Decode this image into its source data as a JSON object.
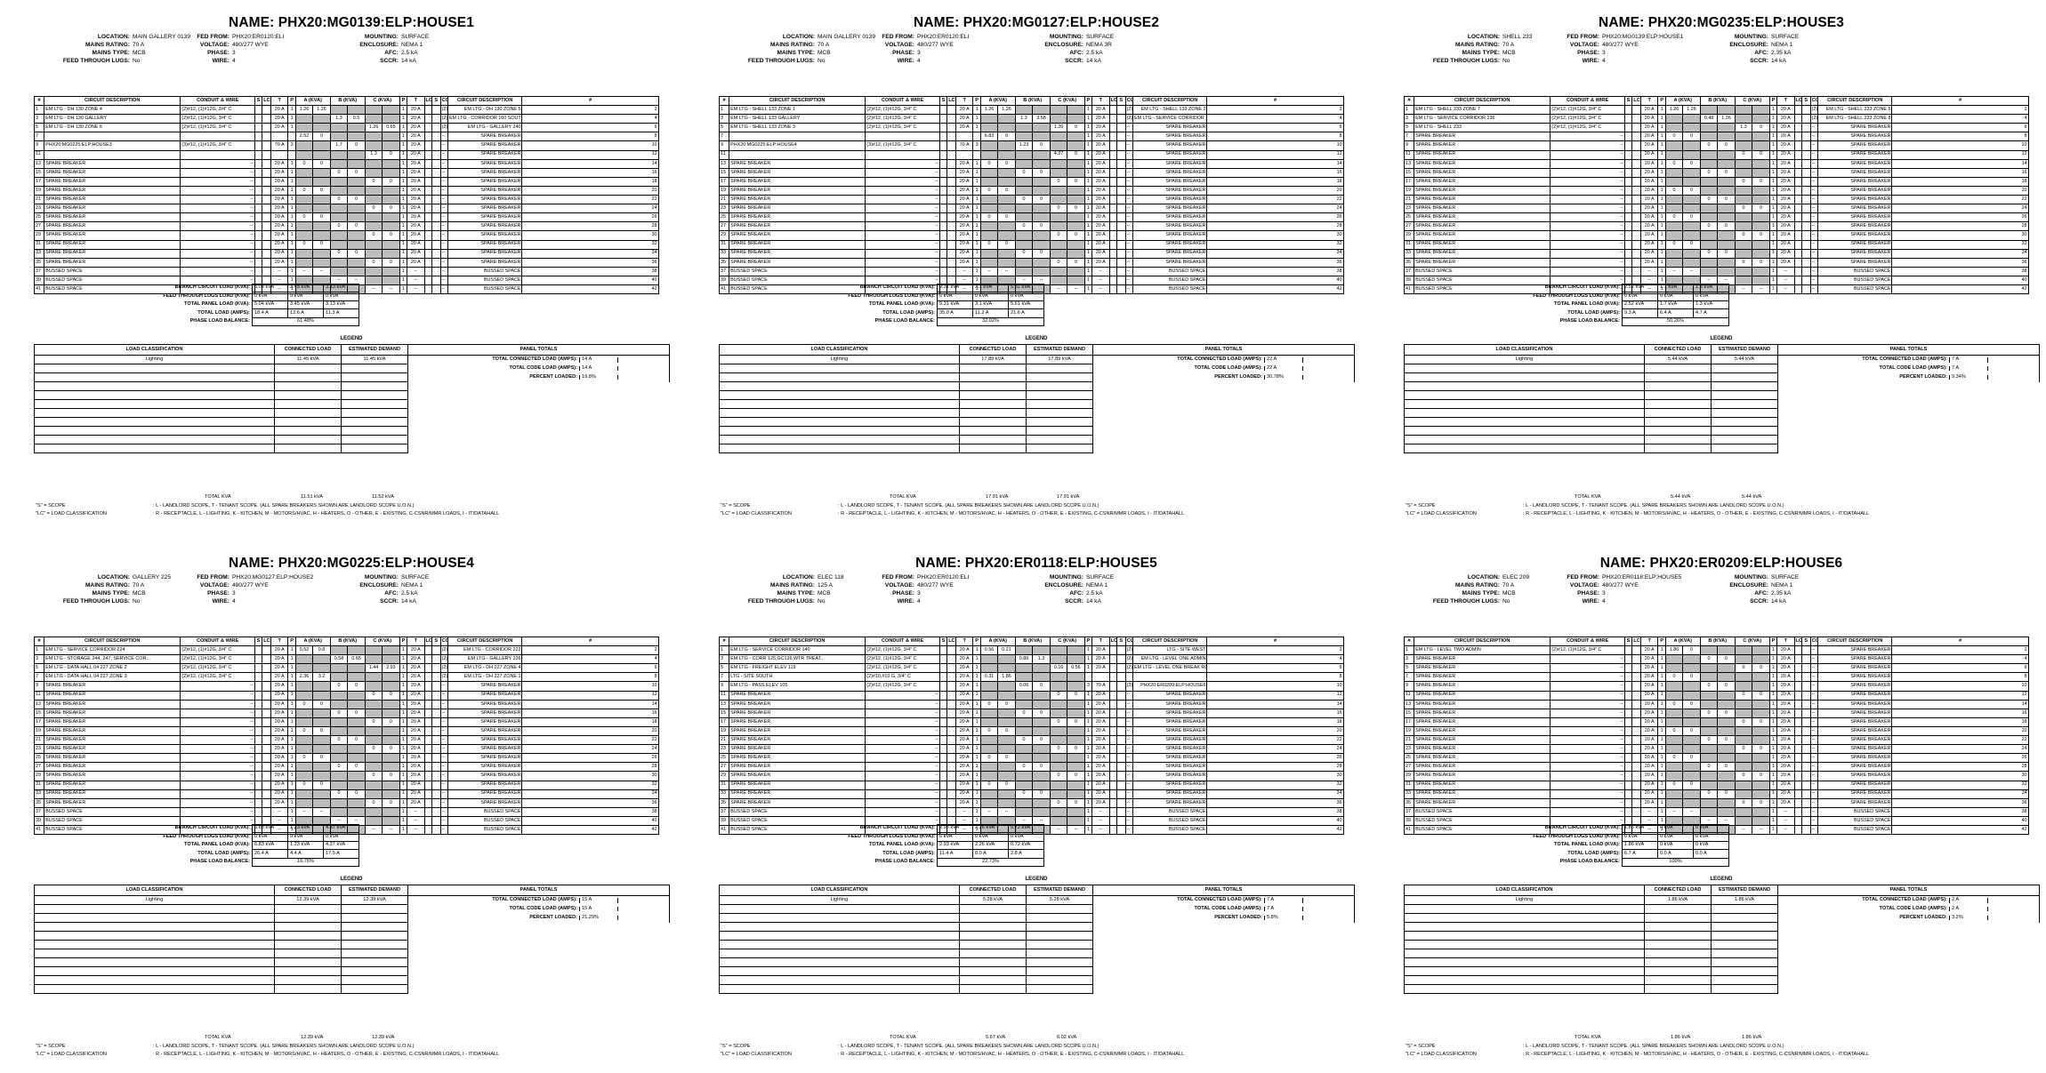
{
  "common": {
    "labels": {
      "location": "LOCATION:",
      "mains_rating": "MAINS RATING:",
      "mains_type": "MAINS TYPE:",
      "feed_through": "FEED THROUGH LUGS:",
      "fed_from": "FED FROM:",
      "voltage": "VOLTAGE:",
      "phase": "PHASE:",
      "wire": "WIRE:",
      "mounting": "MOUNTING:",
      "enclosure": "ENCLOSURE:",
      "afc": "AFC:",
      "sccr": "SCCR:"
    },
    "cols": {
      "num": "#",
      "desc": "CIRCUIT DESCRIPTION",
      "conduit": "CONDUIT & WIRE",
      "s": "S",
      "lc": "LC",
      "t": "T",
      "p": "P",
      "a": "A (KVA)",
      "b": "B (KVA)",
      "c": "C (KVA)"
    },
    "summary_labels": {
      "branch": "BRANCH CIRCUIT LOAD (KVA):",
      "feed": "FEED THROUGH LUGS LOAD (KVA):",
      "total": "TOTAL PANEL LOAD (KVA):",
      "amps": "TOTAL LOAD (AMPS):",
      "balance": "PHASE LOAD BALANCE:"
    },
    "legend": {
      "title": "LEGEND",
      "load_class": "LOAD CLASSIFICATION",
      "connected": "CONNECTED LOAD",
      "estimated": "ESTIMATED DEMAND",
      "panel_totals": "PANEL TOTALS",
      "tc_amps": "TOTAL CONNECTED LOAD (AMPS):",
      "tcode_amps": "TOTAL CODE LOAD (AMPS):",
      "pct": "PERCENT LOADED:",
      "total_kva": "TOTAL KVA"
    },
    "footer": {
      "s_key": "\"S\" = SCOPE",
      "s_val": ": L - LANDLORD SCOPE, T - TENANT SCOPE. (ALL SPARE BREAKERS SHOWN ARE LANDLORD SCOPE U.O.N.)",
      "lc_key": "\"LC\" = LOAD CLASSIFICATION",
      "lc_val": ": R - RECEPTACLE, L - LIGHTING, K - KITCHEN, M - MOTORS/HVAC, H - HEATERS, O - OTHER, E - EXISTING, C-CSNR/MMR LOADS, I - IT/DATAHALL"
    },
    "spare": "SPARE BREAKER",
    "bussed": "BUSSED SPACE",
    "dash": "--",
    "conduit_std": "(2)#12, (1)#12G, 3/4\" C",
    "amp20": "20 A",
    "one": "1",
    "zero": "0"
  },
  "panels": [
    {
      "name": "NAME: PHX20:MG0139:ELP:HOUSE1",
      "location": "MAIN GALLERY 0139",
      "mains_rating": "70 A",
      "mains_type": "MCB",
      "feed_through": "No",
      "fed_from": "PHX20:ER0120:ELI",
      "voltage": "480/277 WYE",
      "phase": "3",
      "wire": "4",
      "mounting": "SURFACE",
      "enclosure": "NEMA 1",
      "afc": "2.5 kA",
      "sccr": "14 kA",
      "left": [
        {
          "n": "1",
          "d": "EM LTG - DH 130 ZONE 4",
          "cw": "(2)#12, (1)#12G, 3/4\" C",
          "s": "",
          "lc": "",
          "t": "20 A",
          "p": "1",
          "a": "1.26",
          "a2": "1.26"
        },
        {
          "n": "3",
          "d": "EM LTG - DH 130 GALLERY",
          "cw": "(2)#12, (1)#12G, 3/4\" C",
          "t": "20 A",
          "p": "1",
          "b": "1.3",
          "b2": "0.5"
        },
        {
          "n": "5",
          "d": "EM LTG - DH 130 ZONE 6",
          "cw": "(2)#12, (1)#12G, 3/4\" C",
          "t": "20 A",
          "p": "1",
          "c": "1.26",
          "c2": "0.65"
        },
        {
          "n": "7",
          "d": "",
          "cw": "",
          "t": "",
          "p": "",
          "a": "2.52",
          "a2": "0"
        },
        {
          "n": "9",
          "d": "PHX20:MG0225:ELP:HOUSE3",
          "cw": "(3)#12, (1)#12G, 3/4\" C",
          "t": "70 A",
          "p": "3",
          "b": "1.7",
          "b2": "0"
        },
        {
          "n": "11",
          "d": "",
          "cw": "",
          "t": "",
          "p": "",
          "c": "1.3",
          "c2": "0"
        }
      ],
      "right": [
        {
          "n": "2",
          "d": "EM LTG - DH 130 ZONE 5",
          "cw": "(2)#12, (1)#12G, 3/4\" C",
          "t": "20 A",
          "p": "1"
        },
        {
          "n": "4",
          "d": "EM LTG - CORRIDOR 160 SOUTH",
          "cw": "(2)#12, (1)#12G, 3/4\" C",
          "t": "20 A",
          "p": "1"
        },
        {
          "n": "6",
          "d": "EM LTG - GALLERY 240",
          "cw": "(2)#12, (1)#12G, 3/4\" C",
          "t": "20 A",
          "p": "1"
        }
      ],
      "sum": {
        "branch": [
          "5.04 kVA",
          "3.45 kVA",
          "3.13 kVA"
        ],
        "feed": [
          "0 kVA",
          "0 kVA",
          "0 kVA"
        ],
        "total": [
          "5.04 kVA",
          "3.45 kVA",
          "3.13 kVA"
        ],
        "amps": [
          "18.4 A",
          "12.6 A",
          "11.3 A"
        ],
        "balance": "61.48%"
      },
      "leg": {
        "cls": "Lighting",
        "conn": "11.45 kVA",
        "est": "11.45 kVA",
        "tca": "14 A",
        "tcode": "14 A",
        "pct": "19.8%",
        "tkva": "11.51 kVA",
        "tdem": "11.52 kVA"
      }
    },
    {
      "name": "NAME: PHX20:MG0127:ELP:HOUSE2",
      "location": "MAIN GALLERY 0139",
      "mains_rating": "70 A",
      "mains_type": "MCB",
      "feed_through": "No",
      "fed_from": "PHX20:ER0120:ELI",
      "voltage": "480/277 WYE",
      "phase": "3",
      "wire": "4",
      "mounting": "SURFACE",
      "enclosure": "NEMA 3R",
      "afc": "2.5 kA",
      "sccr": "14 kA",
      "left": [
        {
          "n": "1",
          "d": "EM LTG - SHELL 133 ZONE 1",
          "cw": "(2)#12, (1)#12G, 3/4\" C",
          "t": "20 A",
          "p": "1",
          "a": "1.26",
          "a2": "1.26"
        },
        {
          "n": "3",
          "d": "EM LTG - SHELL 133 GALLERY",
          "cw": "(2)#12, (1)#12G, 3/4\" C",
          "t": "20 A",
          "p": "1",
          "b": "1.3",
          "b2": "3.58"
        },
        {
          "n": "5",
          "d": "EM LTG - SHELL 133 ZONE 3",
          "cw": "(2)#12, (1)#12G, 3/4\" C",
          "t": "20 A",
          "p": "1",
          "c": "1.26",
          "c2": "0"
        },
        {
          "n": "7",
          "d": "",
          "cw": "",
          "t": "",
          "p": "",
          "a": "6.83",
          "a2": "0"
        },
        {
          "n": "9",
          "d": "PHX20:MG0225:ELP:HOUSE4",
          "cw": "(3)#12, (1)#12G, 3/4\" C",
          "t": "70 A",
          "p": "3",
          "b": "1.23",
          "b2": "0"
        },
        {
          "n": "11",
          "d": "",
          "cw": "",
          "t": "",
          "p": "",
          "c": "4.37",
          "c2": "0"
        }
      ],
      "right": [
        {
          "n": "2",
          "d": "EM LTG - SHELL 133 ZONE 2",
          "cw": "(2)#12, (1)#12G, 3/4\" C",
          "t": "20 A",
          "p": "1"
        },
        {
          "n": "4",
          "d": "EM LTG - SERVICE CORRIDOR 126",
          "cw": "(2)#12, (1)#12G, 3/4\" C",
          "t": "20 A",
          "p": "1"
        }
      ],
      "sum": {
        "branch": [
          "9.31 kVA",
          "3.1 kVA",
          "5.61 kVA"
        ],
        "feed": [
          "0 kVA",
          "0 kVA",
          "0 kVA"
        ],
        "total": [
          "9.31 kVA",
          "3.1 kVA",
          "5.61 kVA"
        ],
        "amps": [
          "35.0 A",
          "11.2 A",
          "21.6 A"
        ],
        "balance": "32.02%"
      },
      "leg": {
        "cls": "Lighting",
        "conn": "17.89 kVA",
        "est": "17.89 kVA",
        "tca": "22 A",
        "tcode": "22 A",
        "pct": "30.78%",
        "tkva": "17.91 kVA",
        "tdem": "17.91 kVA"
      }
    },
    {
      "name": "NAME: PHX20:MG0235:ELP:HOUSE3",
      "location": "SHELL 233",
      "mains_rating": "70 A",
      "mains_type": "MCB",
      "feed_through": "No",
      "fed_from": "PHX20:MG0139:ELP:HOUSE1",
      "voltage": "480/277 WYE",
      "phase": "3",
      "wire": "4",
      "mounting": "SURFACE",
      "enclosure": "NEMA 1",
      "afc": "2.35 kA",
      "sccr": "14 kA",
      "left": [
        {
          "n": "1",
          "d": "EM LTG - SHELL 233 ZONE 7",
          "cw": "(2)#12, (1)#12G, 3/4\" C",
          "t": "20 A",
          "p": "1",
          "a": "1.26",
          "a2": "1.26"
        },
        {
          "n": "3",
          "d": "EM LTG - SERVICE CORRIDOR 236",
          "cw": "(2)#12, (1)#12G, 3/4\" C",
          "t": "20 A",
          "p": "1",
          "b": "0.48",
          "b2": "1.26"
        },
        {
          "n": "5",
          "d": "EM LTG - SHELL 233",
          "cw": "(2)#12, (1)#12G, 3/4\" C",
          "t": "20 A",
          "p": "1",
          "c": "1.3",
          "c2": "0"
        }
      ],
      "right": [
        {
          "n": "2",
          "d": "EM LTG - SHELL 233 ZONE 5",
          "cw": "(2)#12, (1)#12G, 3/4\" C",
          "t": "20 A",
          "p": "1"
        },
        {
          "n": "4",
          "d": "EM LTG - SHELL 233 ZONE 8",
          "cw": "(2)#12, (1)#12G, 3/4\" C",
          "t": "20 A",
          "p": "1"
        }
      ],
      "sum": {
        "branch": [
          "2.52 kVA",
          "1.7 kVA",
          "1.3 kVA"
        ],
        "feed": [
          "0 kVA",
          "0 kVA",
          "0 kVA"
        ],
        "total": [
          "2.52 kVA",
          "1.7 kVA",
          "1.3 kVA"
        ],
        "amps": [
          "9.3 A",
          "6.4 A",
          "4.7 A"
        ],
        "balance": "50.26%"
      },
      "leg": {
        "cls": "Lighting",
        "conn": "5.44 kVA",
        "est": "5.44 kVA",
        "tca": "7 A",
        "tcode": "7 A",
        "pct": "9.34%",
        "tkva": "5.44 kVA",
        "tdem": "5.44 kVA"
      }
    },
    {
      "name": "NAME: PHX20:MG0225:ELP:HOUSE4",
      "location": "GALLERY 225",
      "mains_rating": "70 A",
      "mains_type": "MCB",
      "feed_through": "No",
      "fed_from": "PHX20:MG0127:ELP:HOUSE2",
      "voltage": "480/277 WYE",
      "phase": "3",
      "wire": "4",
      "mounting": "SURFACE",
      "enclosure": "NEMA 1",
      "afc": "2.5 kA",
      "sccr": "14 kA",
      "left": [
        {
          "n": "1",
          "d": "EM LTG - SERVICE CORRIDOR 224",
          "cw": "(2)#12, (1)#12G, 3/4\" C",
          "t": "20 A",
          "p": "1",
          "a": "0.52",
          "a2": "0.8"
        },
        {
          "n": "3",
          "d": "EM LTG - STORAGE 244, 247, SERVICE COR...",
          "cw": "(2)#12, (1)#12G, 3/4\" C",
          "t": "20 A",
          "p": "1",
          "b": "0.58",
          "b2": "0.65"
        },
        {
          "n": "5",
          "d": "EM LTG - DATA HALL 04 227 ZONE 2",
          "cw": "(2)#12, (1)#12G, 3/4\" C",
          "t": "20 A",
          "p": "1",
          "c": "1.44",
          "c2": "2.93"
        },
        {
          "n": "7",
          "d": "EM LTG - DATA HALL 04 227 ZONE 3",
          "cw": "(2)#12, (1)#12G, 3/4\" C",
          "t": "20 A",
          "p": "1",
          "a": "2.36",
          "a2": "3.2"
        }
      ],
      "right": [
        {
          "n": "2",
          "d": "EM LTG - CORRIDOR 222",
          "cw": "(2)#12, (1)#12G, 3/4\" C",
          "t": "20 A",
          "p": "1"
        },
        {
          "n": "4",
          "d": "EM LTG - GALLERY 226",
          "cw": "(2)#12, (1)#12G, 3/4\" C",
          "t": "20 A",
          "p": "1"
        },
        {
          "n": "6",
          "d": "EM LTG - DH 227 ZONE 4",
          "cw": "(2)#12, (1)#12G, 3/4\" C",
          "t": "20 A",
          "p": "1"
        },
        {
          "n": "8",
          "d": "EM LTG - DH 227 ZONE 1",
          "cw": "(2)#12, (1)#12G, 3/4\" C",
          "t": "20 A",
          "p": "1"
        }
      ],
      "sum": {
        "branch": [
          "6.83 kVA",
          "1.23 kVA",
          "4.37 kVA"
        ],
        "feed": [
          "0 kVA",
          "0 kVA",
          "0 kVA"
        ],
        "total": [
          "6.83 kVA",
          "1.23 kVA",
          "4.37 kVA"
        ],
        "amps": [
          "26.4 A",
          "4.4 A",
          "17.5 A"
        ],
        "balance": "16.76%"
      },
      "leg": {
        "cls": "Lighting",
        "conn": "12.39 kVA",
        "est": "12.39 kVA",
        "tca": "15 A",
        "tcode": "15 A",
        "pct": "21.29%",
        "tkva": "12.39 kVA",
        "tdem": "12.39 kVA"
      }
    },
    {
      "name": "NAME: PHX20:ER0118:ELP:HOUSE5",
      "location": "ELEC 118",
      "mains_rating": "125 A",
      "mains_type": "MCB",
      "feed_through": "No",
      "fed_from": "PHX20:ER0120:ELI",
      "voltage": "480/277 WYE",
      "phase": "3",
      "wire": "4",
      "mounting": "SURFACE",
      "enclosure": "NEMA 1",
      "afc": "2.5 kA",
      "sccr": "14 kA",
      "left": [
        {
          "n": "1",
          "d": "EM LTG - SERVICE CORRIDOR 140",
          "cw": "(2)#12, (1)#12G, 3/4\" C",
          "t": "20 A",
          "p": "1",
          "a": "0.56",
          "a2": "0.21"
        },
        {
          "n": "3",
          "d": "EM LTG - CORR 125,GC126,WTR TREAT...",
          "cw": "(2)#12, (1)#12G, 3/4\" C",
          "t": "20 A",
          "p": "1",
          "b": "0.89",
          "b2": "1.3"
        },
        {
          "n": "5",
          "d": "EM LTG - FREIGHT ELEV 119",
          "cw": "(2)#12, (1)#12G, 3/4\" C",
          "t": "20 A",
          "p": "1",
          "c": "0.16",
          "c2": "0.56"
        },
        {
          "n": "7",
          "d": "LTG - SITE SOUTH",
          "cw": "(2)#10,#10 G, 3/4\" C",
          "t": "20 A",
          "p": "1",
          "a": "0.31",
          "a2": "1.86"
        },
        {
          "n": "9",
          "d": "EM LTG - PASS ELEV 105",
          "cw": "(2)#12, (1)#12G, 3/4\" C",
          "t": "20 A",
          "p": "1",
          "b": "0.06",
          "b2": "0"
        }
      ],
      "right": [
        {
          "n": "2",
          "d": "LTG - SITE WEST",
          "cw": "(2)#10,#10 G, 3/4\" C",
          "t": "20 A",
          "p": "1"
        },
        {
          "n": "4",
          "d": "EM LTG - LEVEL ONE ADMIN",
          "cw": "(2)#12, (1)#12G, 3/4\" C",
          "t": "20 A",
          "p": "1"
        },
        {
          "n": "6",
          "d": "EM LTG - LEVEL ONE BREAK ROOM",
          "cw": "(2)#12, (1)#12G, 3/4\" C",
          "t": "20 A",
          "p": "1"
        },
        {
          "n": "8",
          "d": "",
          "cw": "",
          "t": "",
          "p": ""
        },
        {
          "n": "10",
          "d": "PHX20:ER0209:ELP:HOUSE6",
          "cw": "(3)#12, (1)#12G, 3/4\" C",
          "t": "70 A",
          "p": "3"
        }
      ],
      "sum": {
        "branch": [
          "2.93 kVA",
          "2.26 kVA",
          "0.72 kVA"
        ],
        "feed": [
          "0 kVA",
          "0 kVA",
          "0 kVA"
        ],
        "total": [
          "2.93 kVA",
          "2.26 kVA",
          "0.72 kVA"
        ],
        "amps": [
          "11.4 A",
          "8.0 A",
          "2.8 A"
        ],
        "balance": "22.73%"
      },
      "leg": {
        "cls": "Lighting",
        "conn": "5.28 kVA",
        "est": "5.28 kVA",
        "tca": "7 A",
        "tcode": "7 A",
        "pct": "5.8%",
        "tkva": "5.67 kVA",
        "tdem": "6.02 kVA"
      }
    },
    {
      "name": "NAME: PHX20:ER0209:ELP:HOUSE6",
      "location": "ELEC 209",
      "mains_rating": "70 A",
      "mains_type": "MCB",
      "feed_through": "No",
      "fed_from": "PHX20:ER0118:ELP:HOUSE5",
      "voltage": "480/277 WYE",
      "phase": "3",
      "wire": "4",
      "mounting": "SURFACE",
      "enclosure": "NEMA 1",
      "afc": "2.35 kA",
      "sccr": "14 kA",
      "left": [
        {
          "n": "1",
          "d": "EM LTG - LEVEL TWO ADMIN",
          "cw": "(2)#12, (1)#12G, 3/4\" C",
          "t": "20 A",
          "p": "1",
          "a": "1.86",
          "a2": "0"
        }
      ],
      "right": [],
      "sum": {
        "branch": [
          "1.86 kVA",
          "0 kVA",
          "0 kVA"
        ],
        "feed": [
          "0 kVA",
          "0 kVA",
          "0 kVA"
        ],
        "total": [
          "1.86 kVA",
          "0 kVA",
          "0 kVA"
        ],
        "amps": [
          "6.7 A",
          "0.0 A",
          "0.0 A"
        ],
        "balance": "100%"
      },
      "leg": {
        "cls": "Lighting",
        "conn": "1.86 kVA",
        "est": "1.86 kVA",
        "tca": "2 A",
        "tcode": "2 A",
        "pct": "3.2%",
        "tkva": "1.86 kVA",
        "tdem": "1.86 kVA"
      }
    }
  ]
}
